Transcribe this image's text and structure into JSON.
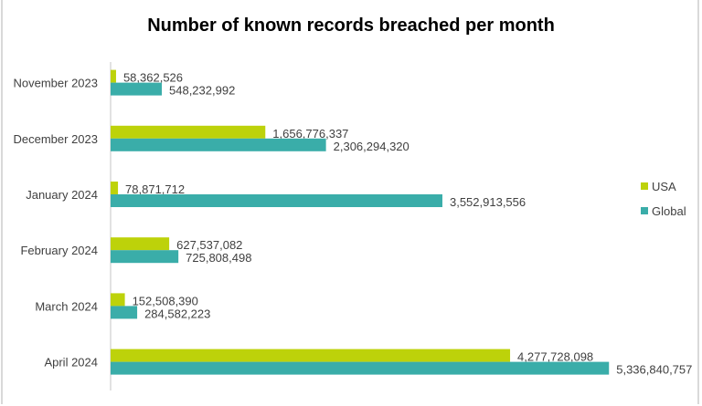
{
  "chart_data": {
    "type": "bar",
    "orientation": "horizontal",
    "title": "Number of known records breached per month",
    "categories": [
      "November 2023",
      "December 2023",
      "January 2024",
      "February 2024",
      "March 2024",
      "April 2024"
    ],
    "series": [
      {
        "name": "USA",
        "color": "#bdd20a",
        "values": [
          58362526,
          1656776337,
          78871712,
          627537082,
          152508390,
          4277728098
        ],
        "labels": [
          "58,362,526",
          "1,656,776,337",
          "78,871,712",
          "627,537,082",
          "152,508,390",
          "4,277,728,098"
        ]
      },
      {
        "name": "Global",
        "color": "#3aada9",
        "values": [
          548232992,
          2306294320,
          3552913556,
          725808498,
          284582223,
          5336840757
        ],
        "labels": [
          "548,232,992",
          "2,306,294,320",
          "3,552,913,556",
          "725,808,498",
          "284,582,223",
          "5,336,840,757"
        ]
      }
    ],
    "xlim": [
      0,
      6000000000
    ],
    "grid": false,
    "value_axis_visible": false,
    "data_labels": true,
    "legend_position": "right"
  }
}
